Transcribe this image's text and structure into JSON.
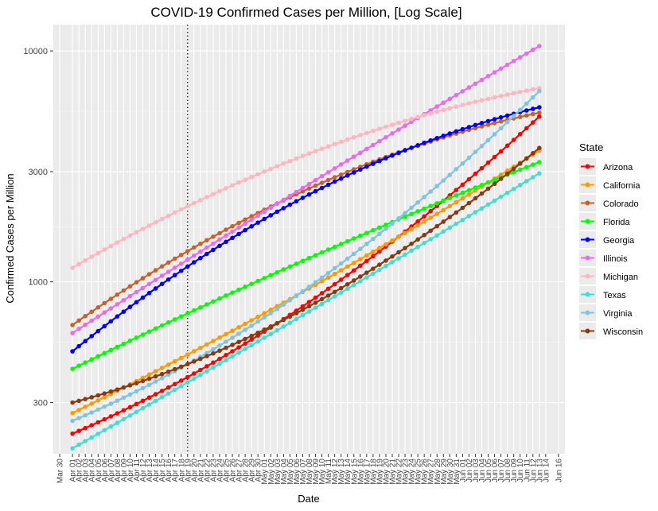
{
  "chart_data": {
    "type": "scatter",
    "title": "COVID-19 Confirmed Cases per Million, [Log Scale]",
    "xlabel": "Date",
    "ylabel": "Confirmed Cases per Million",
    "yscale": "log",
    "ylim": [
      180,
      13000
    ],
    "xlim": [
      "2020-03-29",
      "2020-06-17"
    ],
    "yticks": [
      300,
      1000,
      3000,
      10000
    ],
    "xticks": [
      "Mar 30",
      "Apr 01",
      "Apr 02",
      "Apr 03",
      "Apr 04",
      "Apr 05",
      "Apr 06",
      "Apr 07",
      "Apr 08",
      "Apr 09",
      "Apr 10",
      "Apr 11",
      "Apr 12",
      "Apr 13",
      "Apr 14",
      "Apr 15",
      "Apr 16",
      "Apr 17",
      "Apr 18",
      "Apr 19",
      "Apr 20",
      "Apr 21",
      "Apr 22",
      "Apr 23",
      "Apr 24",
      "Apr 25",
      "Apr 26",
      "Apr 27",
      "Apr 28",
      "Apr 29",
      "Apr 30",
      "May 01",
      "May 02",
      "May 03",
      "May 04",
      "May 05",
      "May 06",
      "May 07",
      "May 08",
      "May 09",
      "May 10",
      "May 11",
      "May 12",
      "May 13",
      "May 14",
      "May 15",
      "May 16",
      "May 17",
      "May 18",
      "May 19",
      "May 20",
      "May 21",
      "May 22",
      "May 23",
      "May 24",
      "May 25",
      "May 26",
      "May 27",
      "May 28",
      "May 29",
      "May 30",
      "May 31",
      "Jun 01",
      "Jun 02",
      "Jun 03",
      "Jun 04",
      "Jun 05",
      "Jun 06",
      "Jun 07",
      "Jun 08",
      "Jun 09",
      "Jun 10",
      "Jun 11",
      "Jun 12",
      "Jun 13",
      "Jun 14",
      "Jun 16"
    ],
    "vline": "2020-04-19",
    "date_range": [
      "2020-04-01",
      "2020-06-13"
    ],
    "grid": true,
    "legend_title": "State",
    "legend_position": "right",
    "series": [
      {
        "name": "Arizona",
        "color": "#ff0000",
        "start": 220,
        "mid": 800,
        "end": 5200
      },
      {
        "name": "California",
        "color": "#ff9a00",
        "start": 270,
        "mid": 920,
        "end": 3700
      },
      {
        "name": "Colorado",
        "color": "#c8622a",
        "start": 650,
        "mid": 2500,
        "end": 5400
      },
      {
        "name": "Florida",
        "color": "#00ff00",
        "start": 420,
        "mid": 1250,
        "end": 3300
      },
      {
        "name": "Georgia",
        "color": "#0000ff",
        "start": 500,
        "mid": 2350,
        "end": 5700
      },
      {
        "name": "Illinois",
        "color": "#e86cec",
        "start": 600,
        "mid": 2600,
        "end": 10500
      },
      {
        "name": "Michigan",
        "color": "#ffb6c1",
        "start": 1150,
        "mid": 3550,
        "end": 6900
      },
      {
        "name": "Texas",
        "color": "#40e0d0",
        "start": 190,
        "mid": 730,
        "end": 2950
      },
      {
        "name": "Virginia",
        "color": "#7ec4e4",
        "start": 250,
        "mid": 930,
        "end": 6700
      },
      {
        "name": "Wisconsin",
        "color": "#8b3a0f",
        "start": 300,
        "mid": 770,
        "end": 3800
      }
    ]
  }
}
